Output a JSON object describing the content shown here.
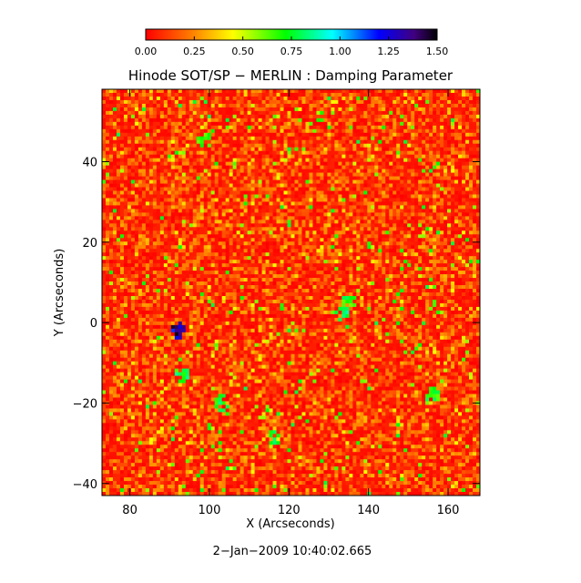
{
  "chart_data": {
    "type": "heatmap",
    "title": "Hinode SOT/SP − MERLIN : Damping Parameter",
    "xlabel": "X (Arcseconds)",
    "ylabel": "Y (Arcseconds)",
    "xlim": [
      73,
      168
    ],
    "ylim": [
      -43,
      58
    ],
    "x_ticks": [
      80,
      100,
      120,
      140,
      160
    ],
    "y_ticks": [
      40,
      20,
      0,
      -20,
      -40
    ],
    "colorbar": {
      "range": [
        0.0,
        1.5
      ],
      "ticks": [
        "0.00",
        "0.25",
        "0.50",
        "0.75",
        "1.00",
        "1.25",
        "1.50"
      ],
      "colors": [
        "#ff0000",
        "#ff8000",
        "#ffff00",
        "#00ff00",
        "#00ffff",
        "#0000ff",
        "#400080",
        "#000000"
      ]
    },
    "value_distribution": {
      "typical_range": [
        0.0,
        0.35
      ],
      "dominant_color": "red-orange",
      "sparse_features": [
        {
          "x": 93,
          "y": -13,
          "value": 0.75
        },
        {
          "x": 103,
          "y": -20,
          "value": 0.75
        },
        {
          "x": 117,
          "y": -29,
          "value": 0.75
        },
        {
          "x": 133,
          "y": 2,
          "value": 0.8
        },
        {
          "x": 92,
          "y": -2,
          "value": 1.3
        },
        {
          "x": 135,
          "y": 5,
          "value": 0.7
        },
        {
          "x": 156,
          "y": -18,
          "value": 0.7
        },
        {
          "x": 99,
          "y": 45,
          "value": 0.7
        }
      ]
    }
  },
  "timestamp": "2−Jan−2009 10:40:02.665"
}
